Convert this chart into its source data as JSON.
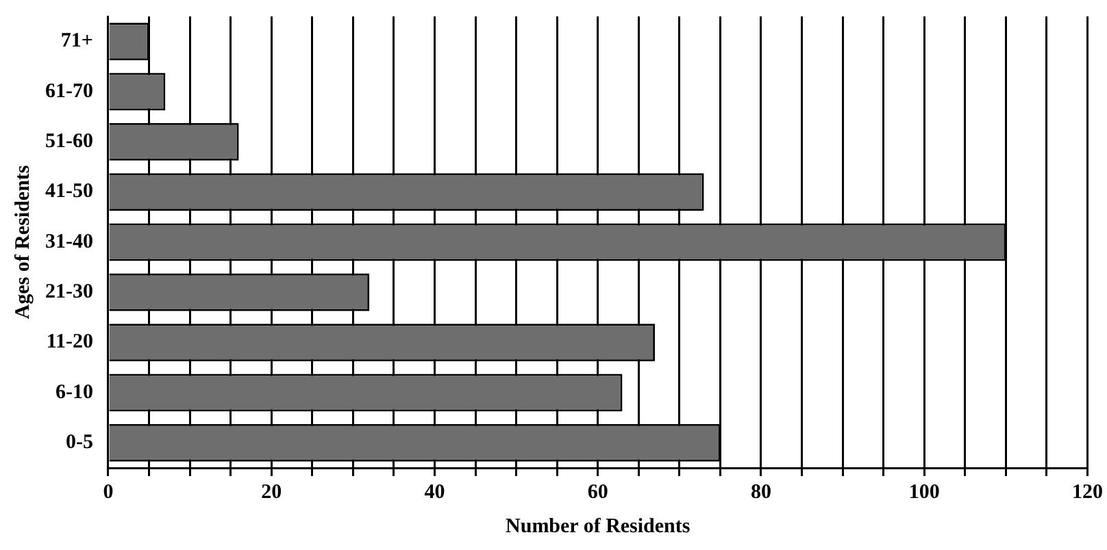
{
  "chart_data": {
    "type": "bar",
    "orientation": "horizontal",
    "xlabel": "Number of Residents",
    "ylabel": "Ages of Residents",
    "categories": [
      "71+",
      "61-70",
      "51-60",
      "41-50",
      "31-40",
      "21-30",
      "11-20",
      "6-10",
      "0-5"
    ],
    "values": [
      5,
      7,
      16,
      73,
      110,
      32,
      67,
      63,
      75
    ],
    "color": "#6e6e6e",
    "xlim": [
      0,
      120
    ],
    "xticks": [
      0,
      {
        "value": 5,
        "label": null
      },
      {
        "value": 10,
        "label": null
      },
      {
        "value": 15,
        "label": null
      },
      20,
      {
        "value": 25,
        "label": null
      },
      {
        "value": 30,
        "label": null
      },
      {
        "value": 35,
        "label": null
      },
      40,
      {
        "value": 45,
        "label": null
      },
      {
        "value": 50,
        "label": null
      },
      {
        "value": 55,
        "label": null
      },
      60,
      {
        "value": 65,
        "label": null
      },
      {
        "value": 70,
        "label": null
      },
      {
        "value": 75,
        "label": null
      },
      80,
      {
        "value": 85,
        "label": null
      },
      {
        "value": 90,
        "label": null
      },
      {
        "value": 95,
        "label": null
      },
      100,
      {
        "value": 105,
        "label": null
      },
      {
        "value": 110,
        "label": null
      },
      {
        "value": 115,
        "label": null
      },
      120
    ],
    "grid": "x",
    "legend": false
  }
}
